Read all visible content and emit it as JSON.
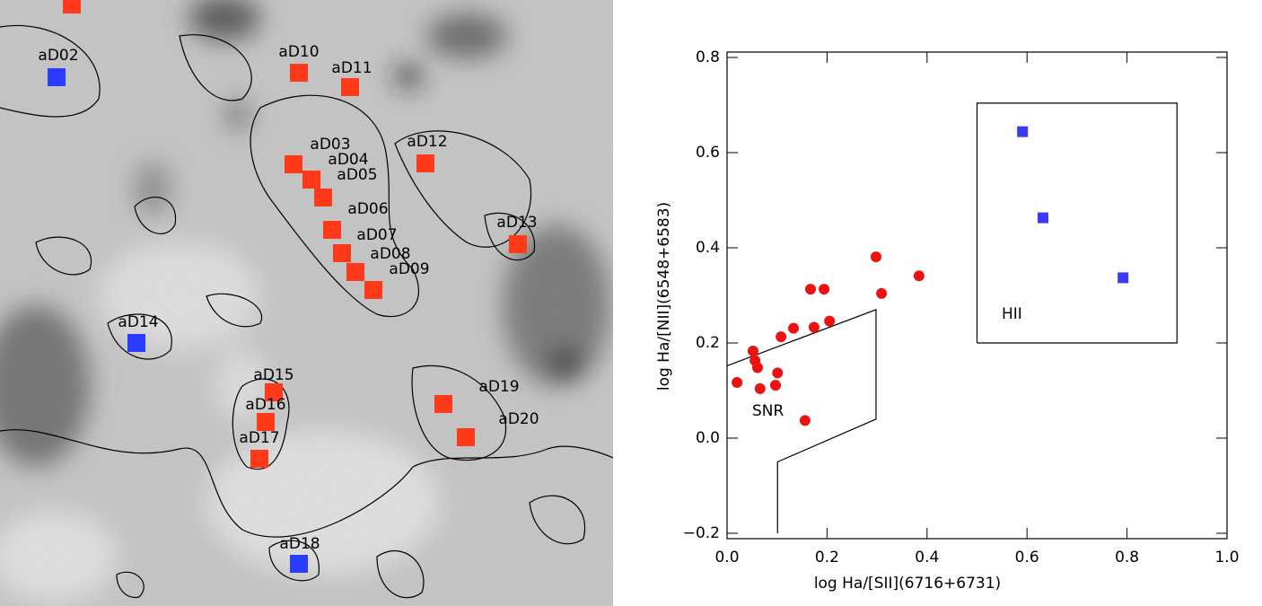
{
  "image_panel": {
    "labels": [
      {
        "text": "aD02",
        "color": "#2a3cff"
      },
      {
        "text": "aD10",
        "color": "#ff3a1a"
      },
      {
        "text": "aD11",
        "color": "#ff3a1a"
      },
      {
        "text": "aD03",
        "color": "#ff3a1a"
      },
      {
        "text": "aD04",
        "color": "#ff3a1a"
      },
      {
        "text": "aD05",
        "color": "#ff3a1a"
      },
      {
        "text": "aD06",
        "color": "#ff3a1a"
      },
      {
        "text": "aD07",
        "color": "#ff3a1a"
      },
      {
        "text": "aD08",
        "color": "#ff3a1a"
      },
      {
        "text": "aD09",
        "color": "#ff3a1a"
      },
      {
        "text": "aD12",
        "color": "#ff3a1a"
      },
      {
        "text": "aD13",
        "color": "#ff3a1a"
      },
      {
        "text": "aD14",
        "color": "#2a3cff"
      },
      {
        "text": "aD15",
        "color": "#ff3a1a"
      },
      {
        "text": "aD16",
        "color": "#ff3a1a"
      },
      {
        "text": "aD17",
        "color": "#ff3a1a"
      },
      {
        "text": "aD18",
        "color": "#2a3cff"
      },
      {
        "text": "aD19",
        "color": "#ff3a1a"
      },
      {
        "text": "aD20",
        "color": "#ff3a1a"
      }
    ]
  },
  "chart_data": {
    "type": "scatter",
    "xlabel": "log Ha/[SII](6716+6731)",
    "ylabel": "log Ha/[NII](6548+6583)",
    "xlim": [
      0,
      1
    ],
    "ylim": [
      -0.2,
      0.8
    ],
    "xticks": [
      {
        "value": 0,
        "label": "0.0"
      },
      0.2,
      0.4,
      0.6,
      0.8,
      {
        "value": 1,
        "label": "1.0"
      }
    ],
    "yticks": [
      {
        "value": -0.2,
        "label": "−0.2"
      },
      {
        "value": 0,
        "label": "0.0"
      },
      0.2,
      0.4,
      0.6,
      0.8
    ],
    "series": [
      {
        "color": "#ee1111",
        "marker": "circle",
        "x": [
          0.02,
          0.052,
          0.056,
          0.061,
          0.066,
          0.097,
          0.101,
          0.108,
          0.133,
          0.156,
          0.167,
          0.174,
          0.194,
          0.205,
          0.298,
          0.309,
          0.384
        ],
        "y": [
          0.117,
          0.183,
          0.163,
          0.148,
          0.104,
          0.111,
          0.137,
          0.213,
          0.231,
          0.037,
          0.313,
          0.233,
          0.313,
          0.246,
          0.381,
          0.304,
          0.341
        ]
      },
      {
        "color": "#3b3bf5",
        "marker": "square",
        "x": [
          0.591,
          0.632,
          0.792
        ],
        "y": [
          0.644,
          0.463,
          0.337
        ]
      }
    ],
    "regions": [
      {
        "label": "SNR",
        "x": [
          0,
          0.298,
          0.298,
          0.101,
          0.101
        ],
        "y": [
          0.152,
          0.27,
          0.04,
          -0.05,
          -0.2
        ]
      },
      {
        "label": "HII",
        "x": [
          0.5,
          0.9,
          0.9,
          0.5,
          0.5
        ],
        "y": [
          0.2,
          0.2,
          0.704,
          0.704,
          0.2
        ]
      }
    ]
  }
}
